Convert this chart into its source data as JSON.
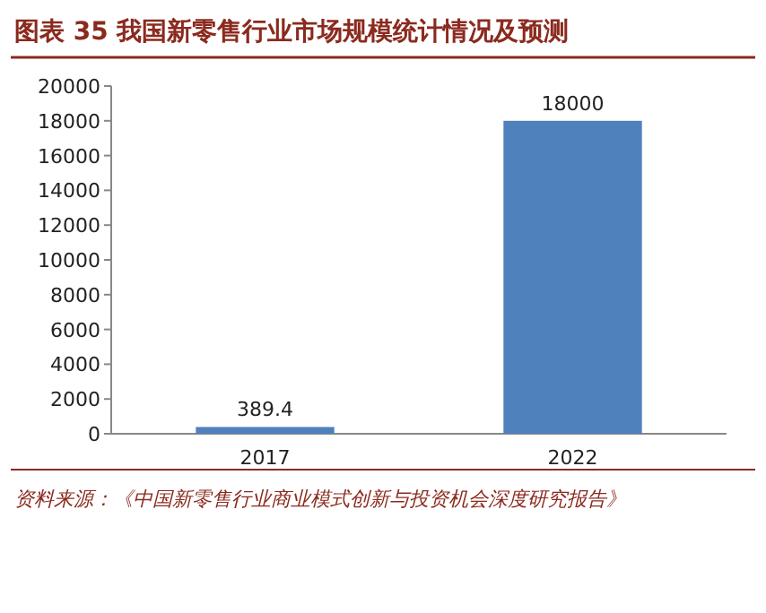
{
  "chart_data": {
    "type": "bar",
    "title": "图表 35   我国新零售行业市场规模统计情况及预测",
    "categories": [
      "2017",
      "2022"
    ],
    "values": [
      389.4,
      18000
    ],
    "color": "#4f81bd",
    "ylim": [
      0,
      20000
    ],
    "yticks": [
      0,
      2000,
      4000,
      6000,
      8000,
      10000,
      12000,
      14000,
      16000,
      18000,
      20000
    ],
    "data_labels": true,
    "grid": false,
    "annotations": [
      "资料来源：《中国新零售行业商业模式创新与投资机会深度研究报告》"
    ]
  }
}
